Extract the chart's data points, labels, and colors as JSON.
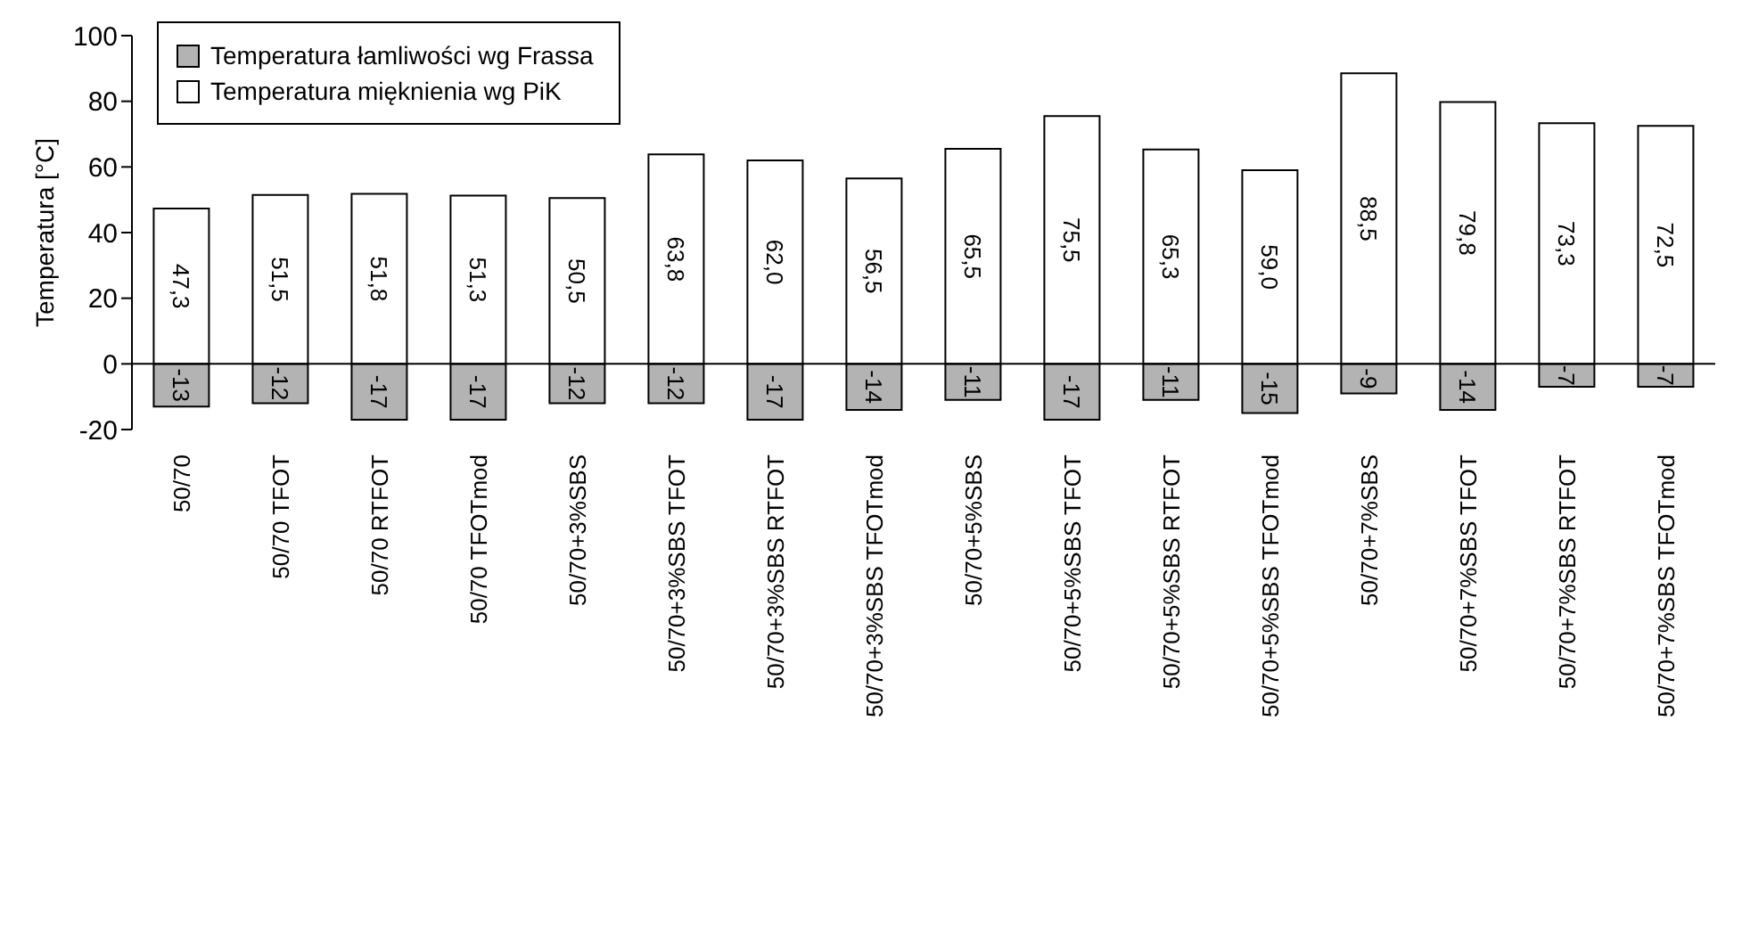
{
  "chart_data": {
    "type": "bar",
    "ylabel": "Temperatura [°C]",
    "categories": [
      "50/70",
      "50/70 TFOT",
      "50/70 RTFOT",
      "50/70 TFOTmod",
      "50/70+3%SBS",
      "50/70+3%SBS TFOT",
      "50/70+3%SBS RTFOT",
      "50/70+3%SBS TFOTmod",
      "50/70+5%SBS",
      "50/70+5%SBS TFOT",
      "50/70+5%SBS RTFOT",
      "50/70+5%SBS TFOTmod",
      "50/70+7%SBS",
      "50/70+7%SBS TFOT",
      "50/70+7%SBS RTFOT",
      "50/70+7%SBS TFOTmod"
    ],
    "stacked": true,
    "series": [
      {
        "name": "Temperatura łamliwości wg Frassa",
        "color": "#b3b3b3",
        "values": [
          -13,
          -12,
          -17,
          -17,
          -12,
          -12,
          -17,
          -14,
          -11,
          -17,
          -11,
          -15,
          -9,
          -14,
          -7,
          -7
        ],
        "value_labels": [
          "-13",
          "-12",
          "-17",
          "-17",
          "-12",
          "-12",
          "-17",
          "-14",
          "-11",
          "-17",
          "-11",
          "-15",
          "-9",
          "-14",
          "-7",
          "-7"
        ]
      },
      {
        "name": "Temperatura mięknienia wg PiK",
        "color": "#ffffff",
        "values": [
          47.3,
          51.5,
          51.8,
          51.3,
          50.5,
          63.8,
          62.0,
          56.5,
          65.5,
          75.5,
          65.3,
          59.0,
          88.5,
          79.8,
          73.3,
          72.5
        ],
        "value_labels": [
          "47,3",
          "51,5",
          "51,8",
          "51,3",
          "50,5",
          "63,8",
          "62,0",
          "56,5",
          "65,5",
          "75,5",
          "65,3",
          "59,0",
          "88,5",
          "79,8",
          "73,3",
          "72,5"
        ]
      }
    ],
    "ylim": [
      -20,
      100
    ],
    "yticks": [
      -20,
      0,
      20,
      40,
      60,
      80,
      100
    ],
    "legend": "top left"
  }
}
